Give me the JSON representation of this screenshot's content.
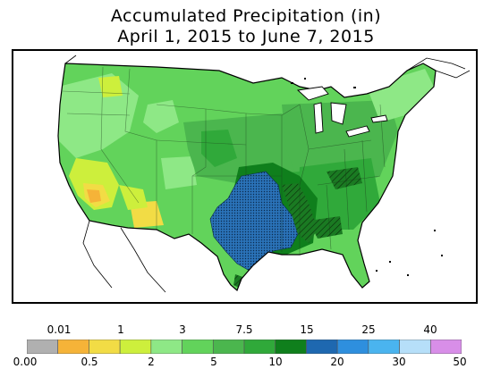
{
  "title": {
    "line1": "Accumulated Precipitation (in)",
    "line2": "April 1, 2015 to June 7, 2015"
  },
  "colorbar": {
    "boundaries": [
      "0.00",
      "0.01",
      "0.5",
      "1",
      "2",
      "3",
      "5",
      "7.5",
      "10",
      "15",
      "20",
      "25",
      "30",
      "40",
      "50"
    ],
    "colors": [
      "#b0b0b0",
      "#f5b338",
      "#f2dc45",
      "#cdef3c",
      "#8ee886",
      "#62d35b",
      "#4bb64e",
      "#30a93a",
      "#0f7f1c",
      "#1e68b0",
      "#2e8fde",
      "#4ab4ef",
      "#b6dff9",
      "#d88ee8"
    ]
  },
  "map": {
    "region": "contiguous-us",
    "overlay": "stippled-hatch-over-heaviest-totals"
  }
}
